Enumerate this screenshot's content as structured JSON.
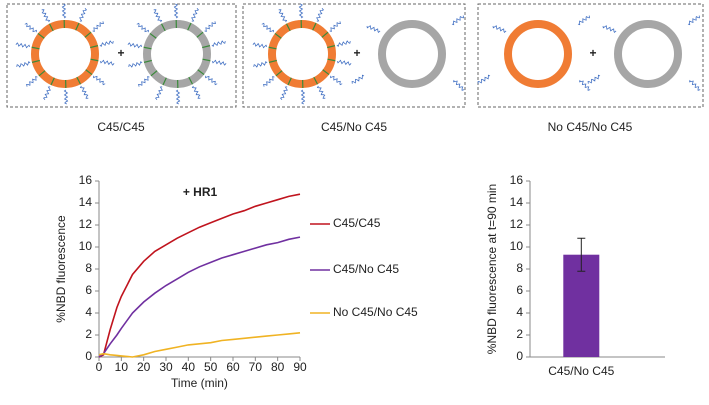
{
  "panels": [
    {
      "label": "C45/C45"
    },
    {
      "label": "C45/No C45"
    },
    {
      "label": "No C45/No C45"
    }
  ],
  "operator": "+",
  "chart_data": [
    {
      "type": "line",
      "title": "+ HR1",
      "x_label": "Time (min)",
      "y_label": "%NBD fluorescence",
      "x": [
        0,
        2,
        5,
        8,
        10,
        15,
        20,
        25,
        30,
        35,
        40,
        45,
        50,
        55,
        60,
        65,
        70,
        75,
        80,
        85,
        90
      ],
      "series": [
        {
          "name": "C45/C45",
          "color": "#c0141e",
          "values": [
            0,
            0.2,
            2.5,
            4.5,
            5.5,
            7.5,
            8.7,
            9.6,
            10.2,
            10.8,
            11.3,
            11.8,
            12.2,
            12.6,
            13,
            13.3,
            13.7,
            14,
            14.3,
            14.6,
            14.8
          ]
        },
        {
          "name": "C45/No C45",
          "color": "#7030a0",
          "values": [
            0,
            0.3,
            1.2,
            2,
            2.6,
            4,
            5,
            5.8,
            6.5,
            7.1,
            7.7,
            8.2,
            8.6,
            9,
            9.3,
            9.6,
            9.9,
            10.2,
            10.4,
            10.7,
            10.9
          ]
        },
        {
          "name": "No C45/No C45",
          "color": "#f0b323",
          "values": [
            0.2,
            0.3,
            0.2,
            0.15,
            0.1,
            0,
            0.2,
            0.5,
            0.7,
            0.9,
            1.1,
            1.2,
            1.3,
            1.5,
            1.6,
            1.7,
            1.8,
            1.9,
            2,
            2.1,
            2.2
          ]
        }
      ],
      "xlim": [
        0,
        90
      ],
      "xticks": [
        0,
        10,
        20,
        30,
        40,
        50,
        60,
        70,
        80,
        90
      ],
      "ylim": [
        0,
        16
      ],
      "yticks": [
        0,
        2,
        4,
        6,
        8,
        10,
        12,
        14,
        16
      ]
    },
    {
      "type": "bar",
      "y_label": "%NBD fluorescence at t=90 min",
      "categories": [
        "C45/No C45"
      ],
      "values": [
        9.3
      ],
      "errors": [
        1.5
      ],
      "color": "#7030a0",
      "ylim": [
        0,
        16
      ],
      "yticks": [
        0,
        2,
        4,
        6,
        8,
        10,
        12,
        14,
        16
      ]
    }
  ]
}
